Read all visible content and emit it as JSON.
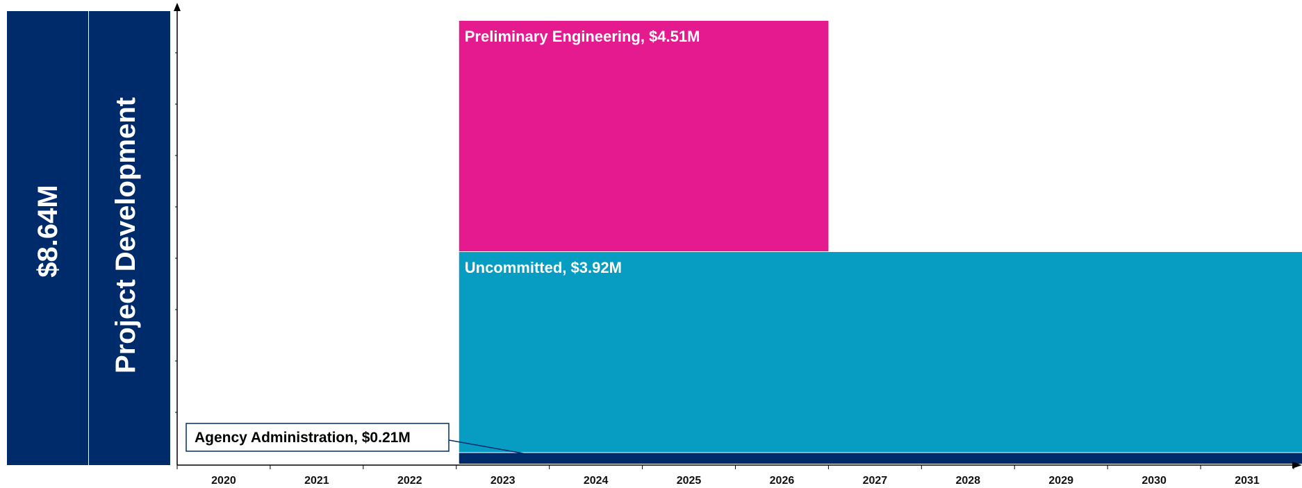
{
  "side_panel": {
    "total": "$8.64M",
    "category": "Project Development",
    "color": "#002b6b"
  },
  "chart_data": {
    "type": "bar",
    "subtype": "stacked-timeline",
    "x": [
      "2020",
      "2021",
      "2022",
      "2023",
      "2024",
      "2025",
      "2026",
      "2027",
      "2028",
      "2029",
      "2030",
      "2031"
    ],
    "stack_total": 8.64,
    "unit": "$M",
    "series": [
      {
        "label": "Agency Administration, $0.21M",
        "value": 0.21,
        "start": "2023",
        "end": "2031",
        "color": "#002b6b",
        "callout": true
      },
      {
        "label": "Uncommitted, $3.92M",
        "value": 3.92,
        "start": "2023",
        "end": "2031",
        "color": "#079dc2",
        "callout": false
      },
      {
        "label": "Preliminary Engineering, $4.51M",
        "value": 4.51,
        "start": "2023",
        "end": "2026",
        "color": "#e61a8f",
        "callout": false
      }
    ],
    "grid": false
  }
}
